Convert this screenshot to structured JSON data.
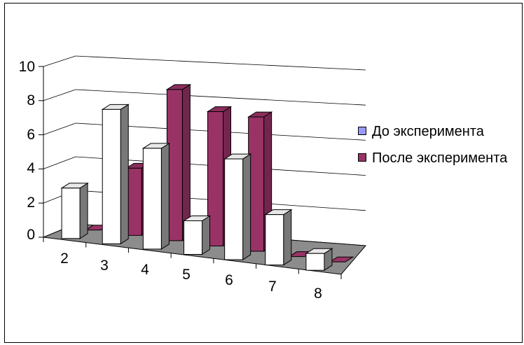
{
  "chart_data": {
    "type": "bar",
    "title": "",
    "xlabel": "",
    "ylabel": "",
    "categories": [
      "2",
      "3",
      "4",
      "5",
      "6",
      "7",
      "8"
    ],
    "series": [
      {
        "name": "До эксперимента",
        "values": [
          3,
          8,
          6,
          2,
          6,
          3,
          1
        ],
        "color": "#ffffff"
      },
      {
        "name": "После эксперимента",
        "values": [
          0,
          4,
          9,
          8,
          8,
          0,
          0
        ],
        "color": "#993366"
      }
    ],
    "ylim": [
      0,
      10
    ],
    "yticks": [
      "0",
      "2",
      "4",
      "6",
      "8",
      "10"
    ],
    "grid": true,
    "legend_position": "right"
  },
  "legend": {
    "items": [
      {
        "label": "До эксперимента",
        "swatch": "#9999ff"
      },
      {
        "label": "После эксперимента",
        "swatch": "#993366"
      }
    ]
  }
}
